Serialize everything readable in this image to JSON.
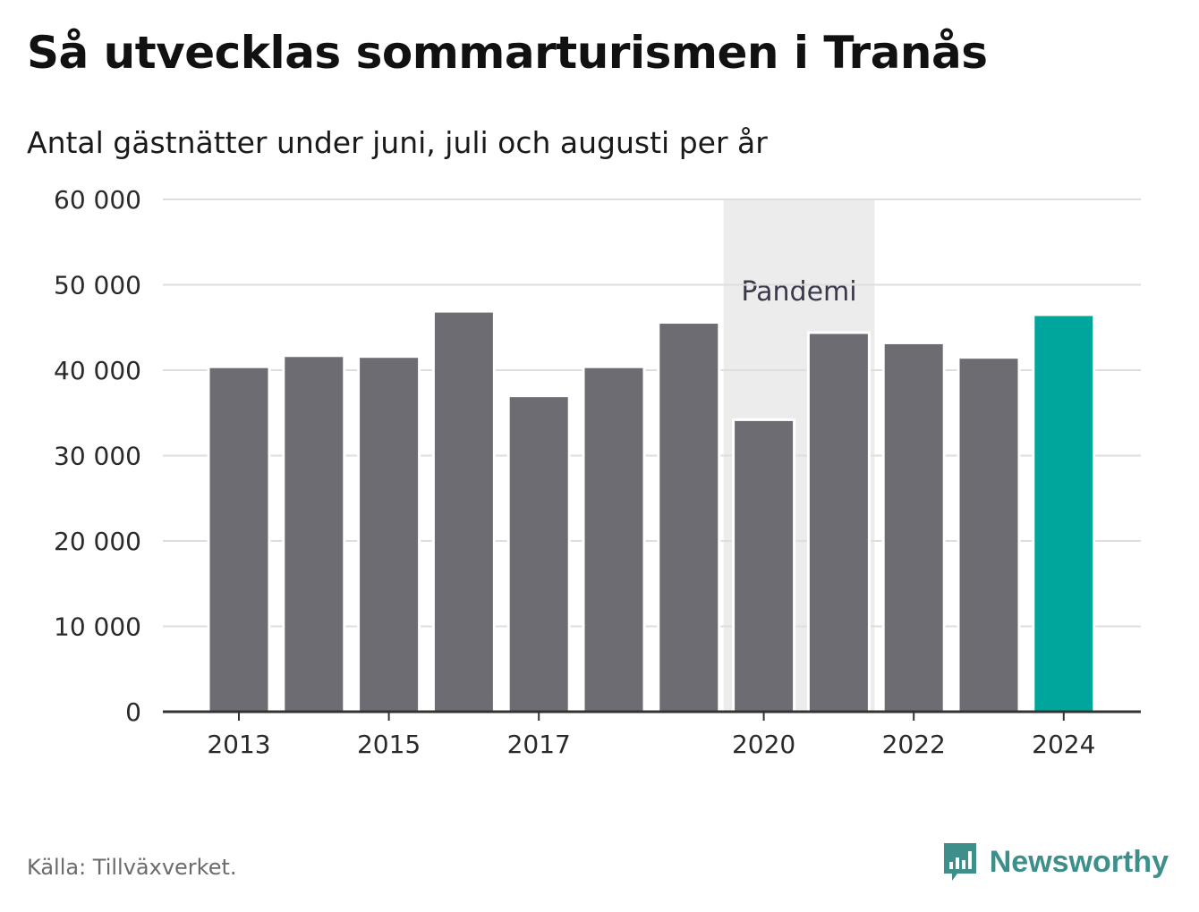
{
  "title": "Så utvecklas sommarturismen i Tranås",
  "subtitle": "Antal gästnätter under juni, juli och augusti per år",
  "source": "Källa: Tillväxverket.",
  "brand": {
    "name": "Newsworthy",
    "icon": "newsworthy-logo-icon"
  },
  "colors": {
    "bar": "#6d6c72",
    "highlight": "#00a59b",
    "band": "#ececec",
    "grid": "#dedede",
    "axis": "#333333"
  },
  "chart_data": {
    "type": "bar",
    "categories": [
      "2013",
      "2014",
      "2015",
      "2016",
      "2017",
      "2018",
      "2019",
      "2020",
      "2021",
      "2022",
      "2023",
      "2024"
    ],
    "values": [
      40400,
      41700,
      41600,
      46900,
      37000,
      40400,
      45600,
      34200,
      44400,
      43200,
      41500,
      46500
    ],
    "highlight": "2024",
    "x_tick_labels": [
      "2013",
      "2015",
      "2017",
      "2020",
      "2022",
      "2024"
    ],
    "y_tick_labels": [
      "0",
      "10 000",
      "20 000",
      "30 000",
      "40 000",
      "50 000",
      "60 000"
    ],
    "y_ticks": [
      0,
      10000,
      20000,
      30000,
      40000,
      50000,
      60000
    ],
    "ylim": [
      0,
      60000
    ],
    "grid": true,
    "annotation": {
      "label": "Pandemi",
      "from": "2020",
      "to": "2021"
    },
    "xlabel": "",
    "ylabel": ""
  }
}
